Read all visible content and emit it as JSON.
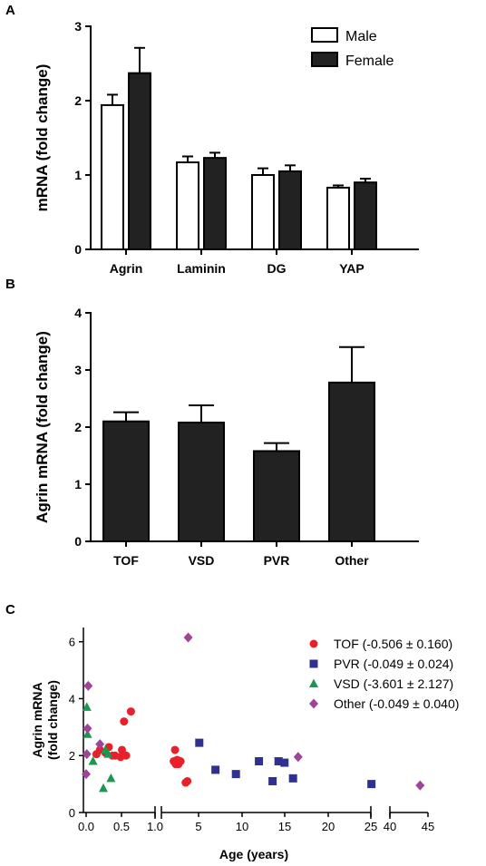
{
  "chart_data": [
    {
      "panel": "A",
      "type": "bar",
      "ylabel": "mRNA (fold change)",
      "ylim": [
        0,
        3
      ],
      "yticks": [
        "0",
        "1",
        "2",
        "3"
      ],
      "categories": [
        "Agrin",
        "Laminin",
        "DG",
        "YAP"
      ],
      "series": [
        {
          "name": "Male",
          "color": "#ffffff",
          "values": [
            1.94,
            1.17,
            1.0,
            0.83
          ],
          "errors": [
            0.14,
            0.08,
            0.09,
            0.03
          ]
        },
        {
          "name": "Female",
          "color": "#222222",
          "values": [
            2.37,
            1.23,
            1.05,
            0.9
          ],
          "errors": [
            0.34,
            0.07,
            0.08,
            0.05
          ]
        }
      ],
      "legend": "top-right"
    },
    {
      "panel": "B",
      "type": "bar",
      "ylabel": "Agrin mRNA (fold change)",
      "ylim": [
        0,
        4
      ],
      "yticks": [
        "0",
        "1",
        "2",
        "3",
        "4"
      ],
      "categories": [
        "TOF",
        "VSD",
        "PVR",
        "Other"
      ],
      "values": [
        2.1,
        2.08,
        1.58,
        2.78
      ],
      "errors": [
        0.16,
        0.3,
        0.14,
        0.62
      ],
      "color": "#222222"
    },
    {
      "panel": "C",
      "type": "scatter",
      "ylabel_line1": "Agrin mRNA",
      "ylabel_line2": "(fold change)",
      "xlabel": "Age (years)",
      "ylim": [
        0,
        6.5
      ],
      "yticks": [
        "0",
        "2",
        "4",
        "6"
      ],
      "xticks_seg1": [
        "0.0",
        "0.5",
        "1.0"
      ],
      "xticks_seg2": [
        "5",
        "10",
        "15",
        "20",
        "25"
      ],
      "xticks_seg3": [
        "40",
        "45"
      ],
      "legend": "top-right",
      "series": [
        {
          "name": "TOF (-0.506 ± 0.160)",
          "marker": "circle",
          "color": "#e8202a",
          "x": [
            0.15,
            0.2,
            0.28,
            0.33,
            0.38,
            0.42,
            0.5,
            0.52,
            0.55,
            0.58,
            0.65,
            1.2,
            1.35,
            1.45,
            1.6,
            1.75,
            2.0,
            2.6,
            2.8
          ],
          "y": [
            2.05,
            2.2,
            2.1,
            2.3,
            2.0,
            2.0,
            1.95,
            2.2,
            3.2,
            2.0,
            3.55,
            1.8,
            2.2,
            1.7,
            1.85,
            1.7,
            1.8,
            1.05,
            1.1
          ]
        },
        {
          "name": "PVR (-0.049 ± 0.024)",
          "marker": "square",
          "color": "#2e3192",
          "x": [
            4.2,
            6.1,
            8.5,
            11.2,
            12.8,
            13.5,
            14.2,
            15.2,
            24.4
          ],
          "y": [
            2.45,
            1.5,
            1.35,
            1.8,
            1.1,
            1.8,
            1.75,
            1.2,
            1.0
          ]
        },
        {
          "name": "VSD (-3.601 ± 2.127)",
          "marker": "triangle",
          "color": "#1a9850",
          "x": [
            0.01,
            0.02,
            0.1,
            0.25,
            0.28,
            0.32,
            0.36
          ],
          "y": [
            3.7,
            2.75,
            1.8,
            0.85,
            2.2,
            2.05,
            1.2
          ]
        },
        {
          "name": "Other (-0.049 ± 0.040)",
          "marker": "diamond",
          "color": "#a0449a",
          "x": [
            0.0,
            0.01,
            0.02,
            0.03,
            0.2,
            2.9,
            15.8,
            43.8
          ],
          "y": [
            1.35,
            2.05,
            2.95,
            4.45,
            2.4,
            6.15,
            1.95,
            0.95
          ]
        }
      ]
    }
  ]
}
